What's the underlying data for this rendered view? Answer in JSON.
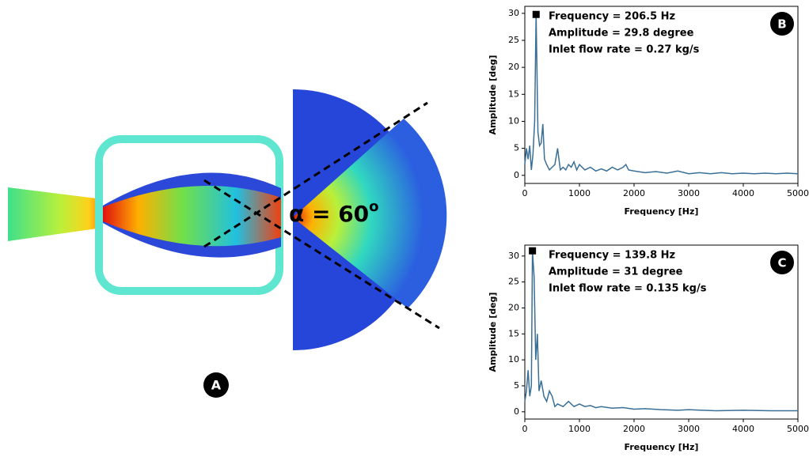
{
  "chart_data": [
    {
      "type": "line",
      "panel": "B",
      "xlabel": "Frequency [Hz]",
      "ylabel": "Amplitude [deg]",
      "annotations": [
        "Frequency = 206.5 Hz",
        "Amplitude = 29.8 degree",
        "Inlet flow rate = 0.27 kg/s"
      ],
      "xlim": [
        0,
        5000
      ],
      "ylim": [
        -1.5,
        31.3
      ],
      "xticks": [
        0,
        1000,
        2000,
        3000,
        4000,
        5000
      ],
      "yticks": [
        0,
        5,
        10,
        15,
        20,
        25,
        30
      ],
      "marker": {
        "x": 206.5,
        "y": 29.8
      },
      "x": [
        0,
        30,
        60,
        90,
        120,
        150,
        180,
        206.5,
        240,
        270,
        300,
        330,
        360,
        400,
        450,
        500,
        550,
        600,
        650,
        700,
        750,
        800,
        850,
        900,
        950,
        1000,
        1100,
        1200,
        1300,
        1400,
        1500,
        1600,
        1700,
        1800,
        1850,
        1900,
        2000,
        2200,
        2400,
        2600,
        2800,
        3000,
        3200,
        3400,
        3600,
        3800,
        4000,
        4200,
        4400,
        4600,
        4800,
        5000
      ],
      "series": [
        {
          "color": "#3a6f96",
          "values": [
            2,
            5,
            3,
            5.5,
            1,
            4,
            10,
            29.8,
            8,
            5.5,
            6,
            9.5,
            3,
            2,
            1,
            1.5,
            2,
            5,
            1,
            1.5,
            1,
            2,
            1.5,
            2.5,
            1,
            2,
            1,
            1.5,
            0.8,
            1.2,
            0.8,
            1.5,
            1,
            1.5,
            2,
            1,
            0.8,
            0.5,
            0.7,
            0.4,
            0.8,
            0.3,
            0.5,
            0.3,
            0.5,
            0.3,
            0.4,
            0.3,
            0.4,
            0.3,
            0.4,
            0.3
          ]
        }
      ]
    },
    {
      "type": "line",
      "panel": "C",
      "xlabel": "Frequency [Hz]",
      "ylabel": "Amplitude [deg]",
      "annotations": [
        "Frequency = 139.8 Hz",
        "Amplitude = 31 degree",
        "Inlet flow rate = 0.135 kg/s"
      ],
      "xlim": [
        0,
        5000
      ],
      "ylim": [
        -1.4,
        32.1
      ],
      "xticks": [
        0,
        1000,
        2000,
        3000,
        4000,
        5000
      ],
      "yticks": [
        0,
        5,
        10,
        15,
        20,
        25,
        30
      ],
      "marker": {
        "x": 139.8,
        "y": 31
      },
      "x": [
        0,
        30,
        60,
        90,
        120,
        139.8,
        170,
        200,
        230,
        260,
        300,
        350,
        400,
        450,
        500,
        550,
        600,
        700,
        800,
        900,
        1000,
        1100,
        1200,
        1300,
        1400,
        1600,
        1800,
        2000,
        2200,
        2500,
        2800,
        3000,
        3500,
        4000,
        4500,
        5000
      ],
      "series": [
        {
          "color": "#3a6f96",
          "values": [
            2,
            4,
            8,
            3,
            5,
            31,
            26,
            10,
            15,
            4,
            6,
            3,
            2,
            4,
            3,
            1,
            1.5,
            1,
            2,
            1,
            1.5,
            1,
            1.2,
            0.8,
            1,
            0.7,
            0.8,
            0.5,
            0.6,
            0.4,
            0.3,
            0.4,
            0.2,
            0.3,
            0.2,
            0.2
          ]
        }
      ]
    }
  ],
  "panel_a": {
    "label": "A",
    "angle_label": "α = 60",
    "angle_sup": "o"
  }
}
